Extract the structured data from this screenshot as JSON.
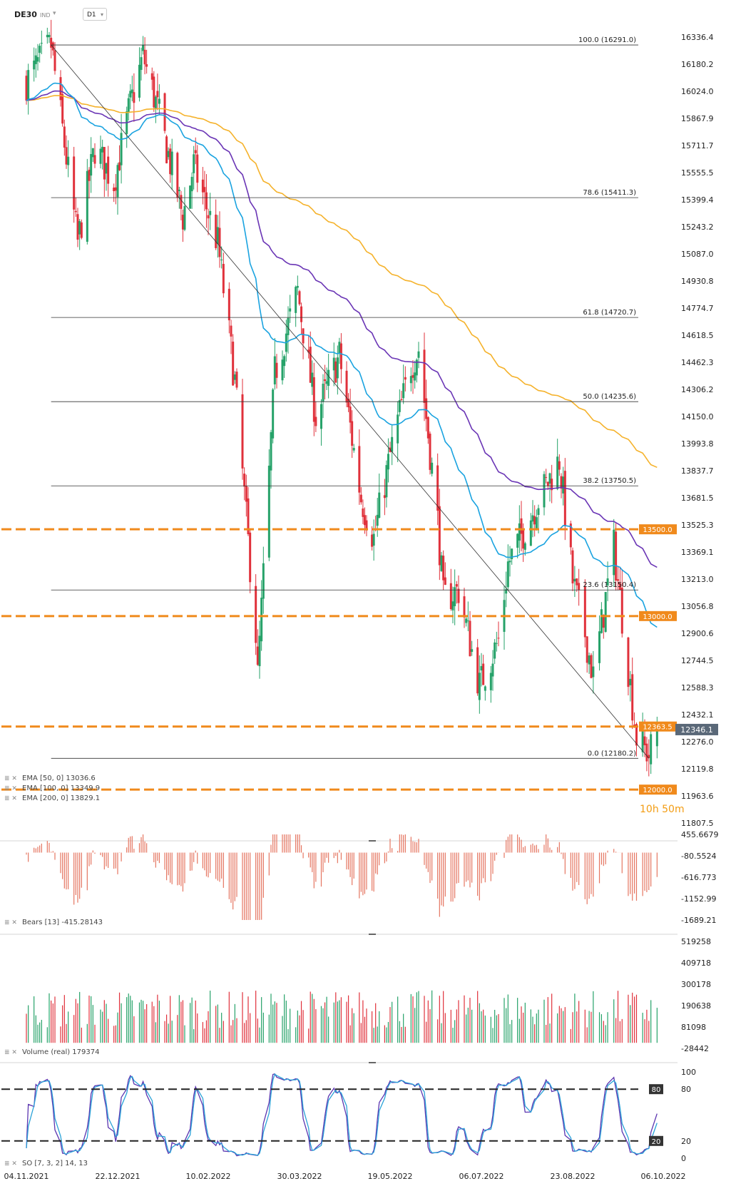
{
  "header": {
    "symbol": "DE30",
    "instrument_type": "IND",
    "timeframe": "D1"
  },
  "timer": "10h 50m",
  "colors": {
    "bull": "#26a269",
    "bear": "#e0313b",
    "ema50": "#1aa3e0",
    "ema100": "#6a35b5",
    "ema200": "#f5b22b",
    "level": "#f08a1c",
    "hist": "#e57661",
    "stoch_k": "#5b35b0",
    "stoch_d": "#2aa2d8"
  },
  "chart_data": [
    {
      "type": "candlestick",
      "name": "price",
      "ylim": [
        11807.5,
        16336.4
      ],
      "y_ticks": [
        "16336.4",
        "16180.2",
        "16024.0",
        "15867.9",
        "15711.7",
        "15555.5",
        "15399.4",
        "15243.2",
        "15087.0",
        "14930.8",
        "14774.7",
        "14618.5",
        "14462.3",
        "14306.2",
        "14150.0",
        "13993.8",
        "13837.7",
        "13681.5",
        "13525.3",
        "13369.1",
        "13213.0",
        "13056.8",
        "12900.6",
        "12744.5",
        "12588.3",
        "12432.1",
        "12276.0",
        "12119.8",
        "11963.6",
        "11807.5"
      ],
      "x_labels": [
        "04.11.2021",
        "22.12.2021",
        "10.02.2022",
        "30.03.2022",
        "19.05.2022",
        "06.07.2022",
        "23.08.2022",
        "06.10.2022"
      ],
      "last_price": "12346.1",
      "anchors": [
        {
          "date": "04.11.2021",
          "close": 16080
        },
        {
          "date": "17.11.2021",
          "close": 16291
        },
        {
          "date": "01.12.2021",
          "close": 15150
        },
        {
          "date": "10.12.2021",
          "close": 15700
        },
        {
          "date": "20.12.2021",
          "close": 15500
        },
        {
          "date": "28.12.2021",
          "close": 15900
        },
        {
          "date": "05.01.2022",
          "close": 16230
        },
        {
          "date": "14.01.2022",
          "close": 15880
        },
        {
          "date": "27.01.2022",
          "close": 15300
        },
        {
          "date": "02.02.2022",
          "close": 15600
        },
        {
          "date": "15.02.2022",
          "close": 15150
        },
        {
          "date": "24.02.2022",
          "close": 14350
        },
        {
          "date": "07.03.2022",
          "close": 12900
        },
        {
          "date": "08.03.2022",
          "close": 12650
        },
        {
          "date": "17.03.2022",
          "close": 14400
        },
        {
          "date": "29.03.2022",
          "close": 14870
        },
        {
          "date": "08.04.2022",
          "close": 14150
        },
        {
          "date": "21.04.2022",
          "close": 14500
        },
        {
          "date": "03.05.2022",
          "close": 13680
        },
        {
          "date": "10.05.2022",
          "close": 13450
        },
        {
          "date": "20.05.2022",
          "close": 13980
        },
        {
          "date": "30.05.2022",
          "close": 14450
        },
        {
          "date": "03.06.2022",
          "close": 14540
        },
        {
          "date": "13.06.2022",
          "close": 13550
        },
        {
          "date": "16.06.2022",
          "close": 13100
        },
        {
          "date": "24.06.2022",
          "close": 13150
        },
        {
          "date": "05.07.2022",
          "close": 12600
        },
        {
          "date": "15.07.2022",
          "close": 12860
        },
        {
          "date": "20.07.2022",
          "close": 13300
        },
        {
          "date": "04.08.2022",
          "close": 13650
        },
        {
          "date": "16.08.2022",
          "close": 13900
        },
        {
          "date": "23.08.2022",
          "close": 13200
        },
        {
          "date": "29.08.2022",
          "close": 12900
        },
        {
          "date": "02.09.2022",
          "close": 12650
        },
        {
          "date": "12.09.2022",
          "close": 13400
        },
        {
          "date": "23.09.2022",
          "close": 12300
        },
        {
          "date": "29.09.2022",
          "close": 12200
        },
        {
          "date": "03.10.2022",
          "close": 12346
        }
      ],
      "fibonacci": {
        "high": {
          "date": "17.11.2021",
          "value": 16291.0
        },
        "low": {
          "date": "29.09.2022",
          "value": 12180.2
        },
        "levels": [
          {
            "label": "100.0 (16291.0)",
            "value": 16291.0
          },
          {
            "label": "78.6 (15411.3)",
            "value": 15411.3
          },
          {
            "label": "61.8 (14720.7)",
            "value": 14720.7
          },
          {
            "label": "50.0 (14235.6)",
            "value": 14235.6
          },
          {
            "label": "38.2 (13750.5)",
            "value": 13750.5
          },
          {
            "label": "23.6 (13150.4)",
            "value": 13150.4
          },
          {
            "label": "0.0 (12180.2)",
            "value": 12180.2
          }
        ]
      },
      "horizontal_levels": [
        {
          "label": "13500.0",
          "value": 13500.0
        },
        {
          "label": "13000.0",
          "value": 13000.0
        },
        {
          "label": "12363.5",
          "value": 12363.5
        },
        {
          "label": "12000.0",
          "value": 12000.0
        }
      ],
      "legend": [
        "EMA [50, 0] 13036.6",
        "EMA [100, 0] 13349.9",
        "EMA [200, 0] 13829.1"
      ]
    },
    {
      "type": "histogram",
      "name": "Bears",
      "legend": "Bears [13] -415.28143",
      "ylim": [
        -1689.21,
        455.6679
      ],
      "y_ticks": [
        "455.6679",
        "-80.5524",
        "-616.773",
        "-1152.99",
        "-1689.21"
      ]
    },
    {
      "type": "bar",
      "name": "Volume",
      "legend": "Volume (real) 179374",
      "ylim": [
        -28442,
        519258
      ],
      "y_ticks": [
        "519258",
        "409718",
        "300178",
        "190638",
        "81098",
        "-28442"
      ]
    },
    {
      "type": "line",
      "name": "SO",
      "legend": "SO [7, 3, 2] 14, 13",
      "ylim": [
        0,
        100
      ],
      "y_ticks": [
        "100",
        "80",
        "20",
        "0"
      ],
      "levels": [
        {
          "label": "80",
          "value": 80
        },
        {
          "label": "20",
          "value": 20
        }
      ]
    }
  ]
}
